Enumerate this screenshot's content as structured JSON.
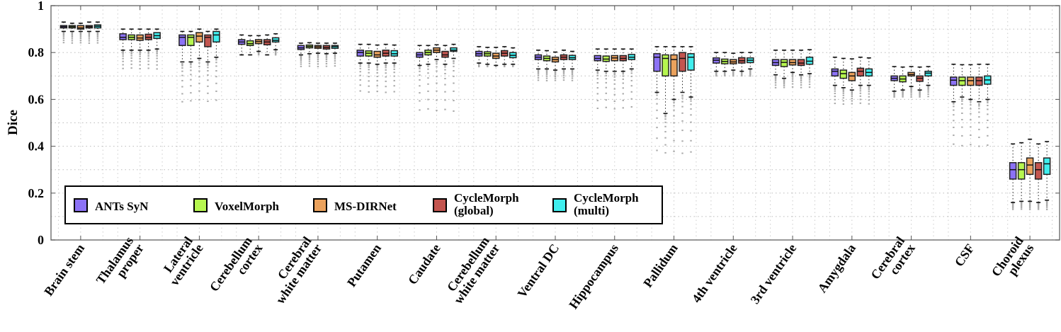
{
  "chart_data": {
    "type": "box",
    "title": "",
    "xlabel": "",
    "ylabel": "Dice",
    "ylim": [
      0,
      1
    ],
    "yticks": [
      "0",
      "0.2",
      "0.4",
      "0.6",
      "0.8",
      "1"
    ],
    "grid": true,
    "legend_position": "bottom-left",
    "box_stat_order": [
      "whisker_low",
      "q1",
      "median",
      "q3",
      "whisker_high"
    ],
    "series": [
      {
        "name": "ANTs SyN",
        "name_lines": [
          "ANTs SyN"
        ],
        "color": "#8c72f6"
      },
      {
        "name": "VoxelMorph",
        "name_lines": [
          "VoxelMorph"
        ],
        "color": "#b6f64f"
      },
      {
        "name": "MS-DIRNet",
        "name_lines": [
          "MS-DIRNet"
        ],
        "color": "#eba25d"
      },
      {
        "name": "CycleMorph (global)",
        "name_lines": [
          "CycleMorph",
          "(global)"
        ],
        "color": "#c3554f"
      },
      {
        "name": "CycleMorph (multi)",
        "name_lines": [
          "CycleMorph",
          "(multi)"
        ],
        "color": "#40eeee"
      }
    ],
    "categories": [
      {
        "label": [
          "Brain stem"
        ],
        "boxes": [
          [
            0.89,
            0.905,
            0.91,
            0.915,
            0.93
          ],
          [
            0.89,
            0.905,
            0.91,
            0.915,
            0.925
          ],
          [
            0.89,
            0.9,
            0.905,
            0.915,
            0.925
          ],
          [
            0.89,
            0.905,
            0.91,
            0.915,
            0.93
          ],
          [
            0.89,
            0.905,
            0.912,
            0.918,
            0.93
          ]
        ],
        "outliers_min": 0.84
      },
      {
        "label": [
          "Thalamus",
          "proper"
        ],
        "boxes": [
          [
            0.81,
            0.855,
            0.865,
            0.88,
            0.9
          ],
          [
            0.81,
            0.855,
            0.865,
            0.875,
            0.9
          ],
          [
            0.81,
            0.852,
            0.862,
            0.875,
            0.9
          ],
          [
            0.81,
            0.855,
            0.865,
            0.878,
            0.9
          ],
          [
            0.815,
            0.86,
            0.872,
            0.885,
            0.9
          ]
        ],
        "outliers_min": 0.73
      },
      {
        "label": [
          "Lateral",
          "ventricle"
        ],
        "boxes": [
          [
            0.76,
            0.83,
            0.865,
            0.875,
            0.89
          ],
          [
            0.76,
            0.83,
            0.865,
            0.875,
            0.89
          ],
          [
            0.775,
            0.845,
            0.87,
            0.885,
            0.9
          ],
          [
            0.76,
            0.825,
            0.865,
            0.875,
            0.89
          ],
          [
            0.78,
            0.845,
            0.875,
            0.89,
            0.9
          ]
        ],
        "outliers_min": 0.59
      },
      {
        "label": [
          "Cerebellum",
          "cortex"
        ],
        "boxes": [
          [
            0.79,
            0.835,
            0.845,
            0.855,
            0.875
          ],
          [
            0.79,
            0.83,
            0.838,
            0.85,
            0.872
          ],
          [
            0.805,
            0.838,
            0.847,
            0.855,
            0.872
          ],
          [
            0.79,
            0.833,
            0.845,
            0.855,
            0.875
          ],
          [
            0.812,
            0.845,
            0.852,
            0.863,
            0.88
          ]
        ],
        "outliers_min": 0.79
      },
      {
        "label": [
          "Cerebral",
          "white matter"
        ],
        "boxes": [
          [
            0.79,
            0.813,
            0.82,
            0.83,
            0.84
          ],
          [
            0.795,
            0.82,
            0.826,
            0.832,
            0.842
          ],
          [
            0.797,
            0.818,
            0.824,
            0.83,
            0.84
          ],
          [
            0.795,
            0.815,
            0.822,
            0.83,
            0.84
          ],
          [
            0.797,
            0.818,
            0.825,
            0.83,
            0.84
          ]
        ],
        "outliers_min": 0.74
      },
      {
        "label": [
          "Putamen"
        ],
        "boxes": [
          [
            0.755,
            0.785,
            0.8,
            0.81,
            0.835
          ],
          [
            0.755,
            0.785,
            0.797,
            0.807,
            0.835
          ],
          [
            0.75,
            0.78,
            0.79,
            0.805,
            0.832
          ],
          [
            0.755,
            0.785,
            0.797,
            0.81,
            0.835
          ],
          [
            0.755,
            0.785,
            0.795,
            0.808,
            0.832
          ]
        ],
        "outliers_min": 0.63
      },
      {
        "label": [
          "Caudate"
        ],
        "boxes": [
          [
            0.745,
            0.78,
            0.79,
            0.8,
            0.83
          ],
          [
            0.75,
            0.79,
            0.8,
            0.81,
            0.83
          ],
          [
            0.77,
            0.8,
            0.81,
            0.82,
            0.833
          ],
          [
            0.75,
            0.78,
            0.79,
            0.805,
            0.83
          ],
          [
            0.775,
            0.805,
            0.81,
            0.82,
            0.835
          ]
        ],
        "outliers_min": 0.55
      },
      {
        "label": [
          "Cerebellum",
          "white matter"
        ],
        "boxes": [
          [
            0.755,
            0.785,
            0.795,
            0.805,
            0.825
          ],
          [
            0.75,
            0.785,
            0.795,
            0.803,
            0.822
          ],
          [
            0.745,
            0.775,
            0.785,
            0.797,
            0.822
          ],
          [
            0.75,
            0.785,
            0.797,
            0.808,
            0.825
          ],
          [
            0.75,
            0.778,
            0.788,
            0.8,
            0.82
          ]
        ],
        "outliers_min": 0.74
      },
      {
        "label": [
          "Ventral DC"
        ],
        "boxes": [
          [
            0.73,
            0.77,
            0.78,
            0.79,
            0.81
          ],
          [
            0.73,
            0.765,
            0.775,
            0.785,
            0.808
          ],
          [
            0.725,
            0.76,
            0.77,
            0.78,
            0.802
          ],
          [
            0.73,
            0.77,
            0.78,
            0.79,
            0.81
          ],
          [
            0.73,
            0.77,
            0.778,
            0.788,
            0.805
          ]
        ],
        "outliers_min": 0.68
      },
      {
        "label": [
          "Hippocampus"
        ],
        "boxes": [
          [
            0.725,
            0.765,
            0.775,
            0.787,
            0.815
          ],
          [
            0.72,
            0.762,
            0.772,
            0.785,
            0.815
          ],
          [
            0.72,
            0.765,
            0.777,
            0.787,
            0.815
          ],
          [
            0.72,
            0.765,
            0.775,
            0.787,
            0.815
          ],
          [
            0.73,
            0.77,
            0.78,
            0.792,
            0.815
          ]
        ],
        "outliers_min": 0.56
      },
      {
        "label": [
          "Pallidum"
        ],
        "boxes": [
          [
            0.63,
            0.72,
            0.78,
            0.795,
            0.825
          ],
          [
            0.54,
            0.7,
            0.775,
            0.79,
            0.825
          ],
          [
            0.6,
            0.7,
            0.77,
            0.79,
            0.825
          ],
          [
            0.63,
            0.72,
            0.775,
            0.8,
            0.825
          ],
          [
            0.61,
            0.725,
            0.78,
            0.795,
            0.825
          ]
        ],
        "outliers_min": 0.37
      },
      {
        "label": [
          "4th ventricle"
        ],
        "boxes": [
          [
            0.72,
            0.755,
            0.767,
            0.777,
            0.8
          ],
          [
            0.72,
            0.752,
            0.762,
            0.772,
            0.8
          ],
          [
            0.725,
            0.752,
            0.76,
            0.77,
            0.797
          ],
          [
            0.72,
            0.755,
            0.765,
            0.778,
            0.8
          ],
          [
            0.73,
            0.757,
            0.767,
            0.777,
            0.8
          ]
        ],
        "outliers_min": 0.7
      },
      {
        "label": [
          "3rd ventricle"
        ],
        "boxes": [
          [
            0.705,
            0.745,
            0.757,
            0.77,
            0.81
          ],
          [
            0.69,
            0.74,
            0.758,
            0.77,
            0.81
          ],
          [
            0.715,
            0.747,
            0.757,
            0.77,
            0.81
          ],
          [
            0.705,
            0.745,
            0.755,
            0.77,
            0.81
          ],
          [
            0.71,
            0.75,
            0.763,
            0.78,
            0.812
          ]
        ],
        "outliers_min": 0.65
      },
      {
        "label": [
          "Amygdala"
        ],
        "boxes": [
          [
            0.66,
            0.7,
            0.72,
            0.73,
            0.78
          ],
          [
            0.65,
            0.69,
            0.71,
            0.725,
            0.775
          ],
          [
            0.64,
            0.68,
            0.7,
            0.715,
            0.773
          ],
          [
            0.66,
            0.7,
            0.72,
            0.733,
            0.78
          ],
          [
            0.66,
            0.7,
            0.715,
            0.73,
            0.777
          ]
        ],
        "outliers_min": 0.58
      },
      {
        "label": [
          "Cerebral",
          "cortex"
        ],
        "boxes": [
          [
            0.635,
            0.68,
            0.69,
            0.7,
            0.74
          ],
          [
            0.64,
            0.675,
            0.687,
            0.7,
            0.738
          ],
          [
            0.655,
            0.7,
            0.706,
            0.715,
            0.74
          ],
          [
            0.64,
            0.677,
            0.69,
            0.7,
            0.738
          ],
          [
            0.66,
            0.7,
            0.712,
            0.72,
            0.74
          ]
        ],
        "outliers_min": 0.61
      },
      {
        "label": [
          "CSF"
        ],
        "boxes": [
          [
            0.59,
            0.66,
            0.682,
            0.695,
            0.75
          ],
          [
            0.61,
            0.66,
            0.68,
            0.695,
            0.748
          ],
          [
            0.6,
            0.66,
            0.68,
            0.695,
            0.748
          ],
          [
            0.59,
            0.66,
            0.68,
            0.695,
            0.75
          ],
          [
            0.6,
            0.665,
            0.683,
            0.7,
            0.75
          ]
        ],
        "outliers_min": 0.4
      },
      {
        "label": [
          "Choroid",
          "plexus"
        ],
        "boxes": [
          [
            0.16,
            0.26,
            0.3,
            0.33,
            0.41
          ],
          [
            0.165,
            0.26,
            0.3,
            0.33,
            0.415
          ],
          [
            0.165,
            0.28,
            0.32,
            0.35,
            0.43
          ],
          [
            0.16,
            0.26,
            0.3,
            0.33,
            0.41
          ],
          [
            0.17,
            0.28,
            0.325,
            0.35,
            0.42
          ]
        ],
        "outliers_min": 0.13
      }
    ]
  }
}
